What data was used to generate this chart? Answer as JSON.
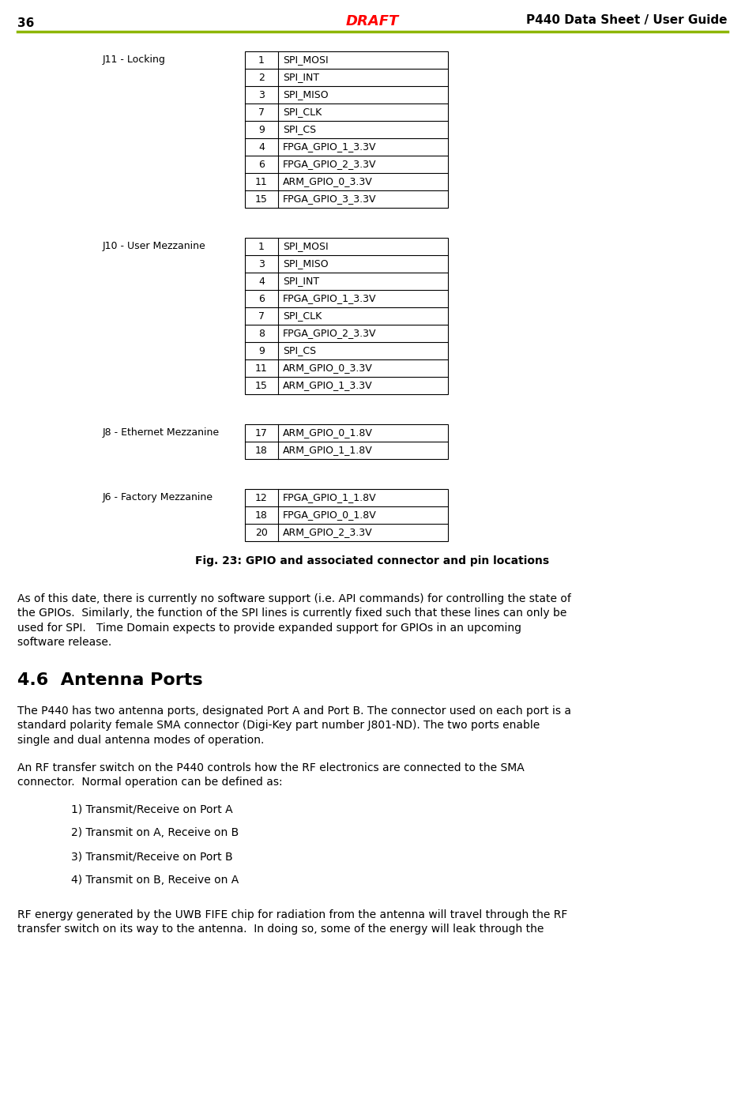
{
  "page_number": "36",
  "header_draft": "DRAFT",
  "header_title": "P440 Data Sheet / User Guide",
  "header_line_color": "#8db600",
  "bg_color": "#ffffff",
  "text_color": "#000000",
  "draft_color": "#ff0000",
  "tables": [
    {
      "label": "J11 - Locking",
      "rows": [
        [
          "1",
          "SPI_MOSI"
        ],
        [
          "2",
          "SPI_INT"
        ],
        [
          "3",
          "SPI_MISO"
        ],
        [
          "7",
          "SPI_CLK"
        ],
        [
          "9",
          "SPI_CS"
        ],
        [
          "4",
          "FPGA_GPIO_1_3.3V"
        ],
        [
          "6",
          "FPGA_GPIO_2_3.3V"
        ],
        [
          "11",
          "ARM_GPIO_0_3.3V"
        ],
        [
          "15",
          "FPGA_GPIO_3_3.3V"
        ]
      ]
    },
    {
      "label": "J10 - User Mezzanine",
      "rows": [
        [
          "1",
          "SPI_MOSI"
        ],
        [
          "3",
          "SPI_MISO"
        ],
        [
          "4",
          "SPI_INT"
        ],
        [
          "6",
          "FPGA_GPIO_1_3.3V"
        ],
        [
          "7",
          "SPI_CLK"
        ],
        [
          "8",
          "FPGA_GPIO_2_3.3V"
        ],
        [
          "9",
          "SPI_CS"
        ],
        [
          "11",
          "ARM_GPIO_0_3.3V"
        ],
        [
          "15",
          "ARM_GPIO_1_3.3V"
        ]
      ]
    },
    {
      "label": "J8 - Ethernet Mezzanine",
      "rows": [
        [
          "17",
          "ARM_GPIO_0_1.8V"
        ],
        [
          "18",
          "ARM_GPIO_1_1.8V"
        ]
      ]
    },
    {
      "label": "J6 - Factory Mezzanine",
      "rows": [
        [
          "12",
          "FPGA_GPIO_1_1.8V"
        ],
        [
          "18",
          "FPGA_GPIO_0_1.8V"
        ],
        [
          "20",
          "ARM_GPIO_2_3.3V"
        ]
      ]
    }
  ],
  "fig_caption": "Fig. 23: GPIO and associated connector and pin locations",
  "body_text": "As of this date, there is currently no software support (i.e. API commands) for controlling the state of\nthe GPIOs.  Similarly, the function of the SPI lines is currently fixed such that these lines can only be\nused for SPI.   Time Domain expects to provide expanded support for GPIOs in an upcoming\nsoftware release.",
  "section_heading": "4.6  Antenna Ports",
  "para1": "The P440 has two antenna ports, designated Port A and Port B. The connector used on each port is a\nstandard polarity female SMA connector (Digi-Key part number J801-ND). The two ports enable\nsingle and dual antenna modes of operation.",
  "para2": "An RF transfer switch on the P440 controls how the RF electronics are connected to the SMA\nconnector.  Normal operation can be defined as:",
  "list_items": [
    "1) Transmit/Receive on Port A",
    "2) Transmit on A, Receive on B",
    "3) Transmit/Receive on Port B",
    "4) Transmit on B, Receive on A"
  ],
  "final_paragraph": "RF energy generated by the UWB FIFE chip for radiation from the antenna will travel through the RF\ntransfer switch on its way to the antenna.  In doing so, some of the energy will leak through the"
}
